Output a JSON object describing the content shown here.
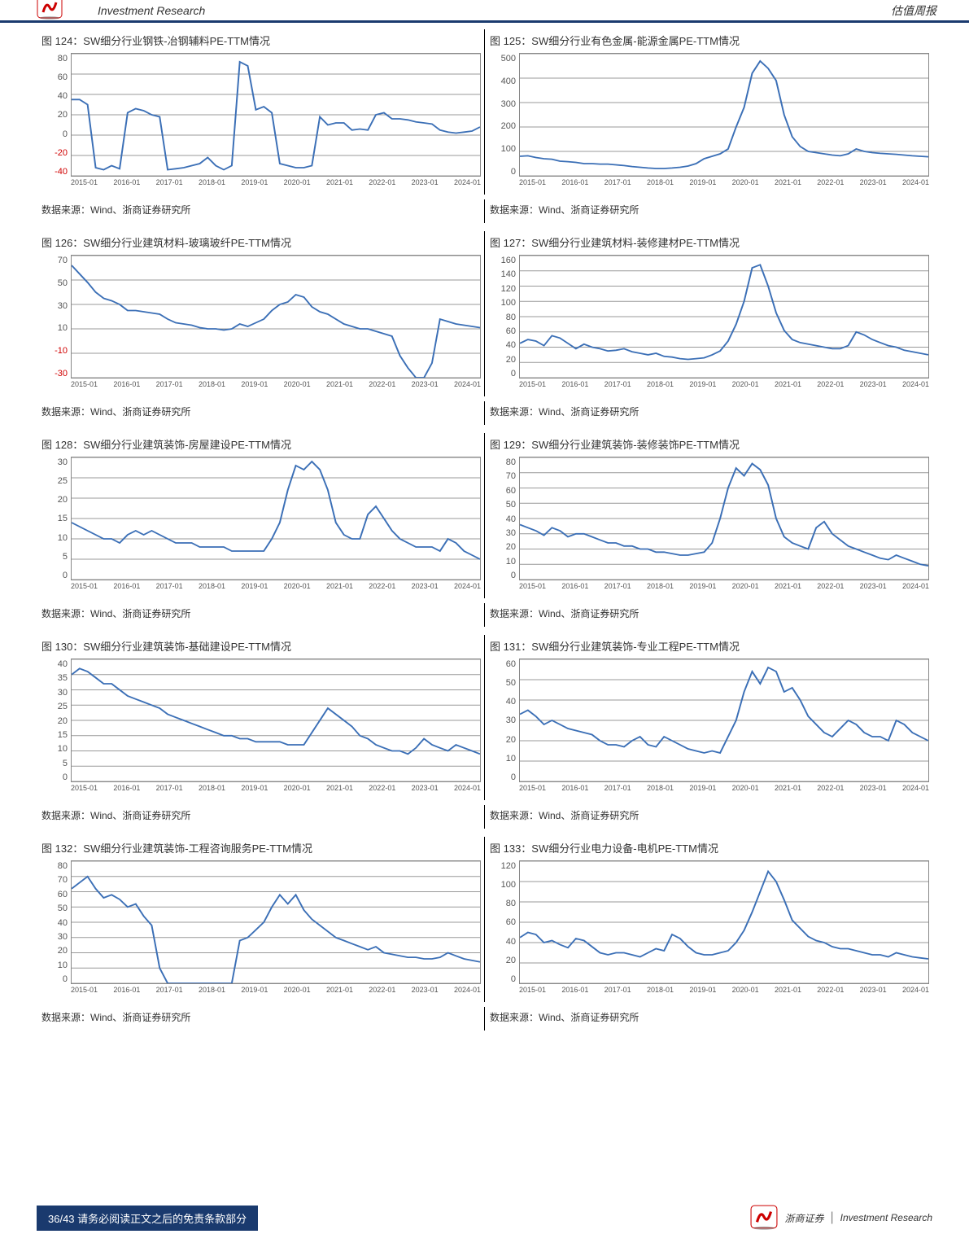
{
  "header": {
    "left": "Investment Research",
    "right": "估值周报"
  },
  "source_text": "数据来源：Wind、浙商证券研究所",
  "footer": {
    "page_label": "36/43   请务必阅读正文之后的免责条款部分",
    "brand_cn": "浙商证券",
    "brand_en": "Investment Research"
  },
  "style": {
    "line_color": "#3b6fb6",
    "grid_color": "#999999",
    "border_color": "#888888",
    "neg_color": "#d00000",
    "accent": "#1a3a6e"
  },
  "x_labels": [
    "2015-01",
    "2016-01",
    "2017-01",
    "2018-01",
    "2019-01",
    "2020-01",
    "2021-01",
    "2022-01",
    "2023-01",
    "2024-01"
  ],
  "charts": [
    {
      "pair": [
        {
          "title": "图 124：SW细分行业钢铁-冶钢辅料PE-TTM情况",
          "ymin": -40,
          "ymax": 80,
          "yticks": [
            80,
            60,
            40,
            20,
            0,
            -20,
            -40
          ],
          "data": [
            35,
            35,
            30,
            -32,
            -34,
            -30,
            -33,
            22,
            26,
            24,
            20,
            18,
            -34,
            -33,
            -32,
            -30,
            -28,
            -22,
            -30,
            -34,
            -30,
            72,
            68,
            25,
            28,
            22,
            -28,
            -30,
            -32,
            -32,
            -30,
            18,
            10,
            12,
            12,
            5,
            6,
            5,
            20,
            22,
            16,
            16,
            15,
            13,
            12,
            11,
            5,
            3,
            2,
            3,
            4,
            8
          ]
        },
        {
          "title": "图 125：SW细分行业有色金属-能源金属PE-TTM情况",
          "ymin": 0,
          "ymax": 500,
          "yticks": [
            500,
            400,
            300,
            200,
            100,
            0
          ],
          "data": [
            80,
            82,
            75,
            70,
            68,
            60,
            58,
            55,
            50,
            50,
            48,
            48,
            45,
            42,
            38,
            35,
            32,
            30,
            30,
            32,
            35,
            40,
            50,
            70,
            80,
            90,
            110,
            200,
            280,
            420,
            470,
            440,
            390,
            250,
            160,
            120,
            100,
            95,
            90,
            85,
            82,
            90,
            110,
            100,
            95,
            92,
            90,
            88,
            85,
            82,
            80,
            78
          ]
        }
      ]
    },
    {
      "pair": [
        {
          "title": "图 126：SW细分行业建筑材料-玻璃玻纤PE-TTM情况",
          "ymin": -30,
          "ymax": 70,
          "yticks": [
            70,
            50,
            30,
            10,
            -10,
            -30
          ],
          "data": [
            62,
            55,
            48,
            40,
            35,
            33,
            30,
            25,
            25,
            24,
            23,
            22,
            18,
            15,
            14,
            13,
            11,
            10,
            10,
            9,
            10,
            14,
            12,
            15,
            18,
            25,
            30,
            32,
            38,
            36,
            28,
            24,
            22,
            18,
            14,
            12,
            10,
            10,
            8,
            6,
            4,
            -12,
            -22,
            -30,
            -30,
            -18,
            18,
            16,
            14,
            13,
            12,
            11
          ]
        },
        {
          "title": "图 127：SW细分行业建筑材料-装修建材PE-TTM情况",
          "ymin": 0,
          "ymax": 160,
          "yticks": [
            160,
            140,
            120,
            100,
            80,
            60,
            40,
            20,
            0
          ],
          "data": [
            45,
            50,
            48,
            42,
            55,
            52,
            45,
            38,
            44,
            40,
            38,
            35,
            36,
            38,
            34,
            32,
            30,
            32,
            28,
            27,
            25,
            24,
            25,
            26,
            30,
            35,
            48,
            70,
            100,
            144,
            148,
            120,
            85,
            62,
            50,
            46,
            44,
            42,
            40,
            38,
            38,
            42,
            60,
            56,
            50,
            46,
            42,
            40,
            36,
            34,
            32,
            30
          ]
        }
      ]
    },
    {
      "pair": [
        {
          "title": "图 128：SW细分行业建筑装饰-房屋建设PE-TTM情况",
          "ymin": 0,
          "ymax": 30,
          "yticks": [
            30,
            25,
            20,
            15,
            10,
            5,
            0
          ],
          "data": [
            14,
            13,
            12,
            11,
            10,
            10,
            9,
            11,
            12,
            11,
            12,
            11,
            10,
            9,
            9,
            9,
            8,
            8,
            8,
            8,
            7,
            7,
            7,
            7,
            7,
            10,
            14,
            22,
            28,
            27,
            29,
            27,
            22,
            14,
            11,
            10,
            10,
            16,
            18,
            15,
            12,
            10,
            9,
            8,
            8,
            8,
            7,
            10,
            9,
            7,
            6,
            5
          ]
        },
        {
          "title": "图 129：SW细分行业建筑装饰-装修装饰PE-TTM情况",
          "ymin": 0,
          "ymax": 80,
          "yticks": [
            80,
            70,
            60,
            50,
            40,
            30,
            20,
            10,
            0
          ],
          "data": [
            36,
            34,
            32,
            29,
            34,
            32,
            28,
            30,
            30,
            28,
            26,
            24,
            24,
            22,
            22,
            20,
            20,
            18,
            18,
            17,
            16,
            16,
            17,
            18,
            24,
            40,
            60,
            73,
            68,
            76,
            72,
            62,
            40,
            28,
            24,
            22,
            20,
            34,
            38,
            30,
            26,
            22,
            20,
            18,
            16,
            14,
            13,
            16,
            14,
            12,
            10,
            9
          ]
        }
      ]
    },
    {
      "pair": [
        {
          "title": "图 130：SW细分行业建筑装饰-基础建设PE-TTM情况",
          "ymin": 0,
          "ymax": 40,
          "yticks": [
            40,
            35,
            30,
            25,
            20,
            15,
            10,
            5,
            0
          ],
          "data": [
            35,
            37,
            36,
            34,
            32,
            32,
            30,
            28,
            27,
            26,
            25,
            24,
            22,
            21,
            20,
            19,
            18,
            17,
            16,
            15,
            15,
            14,
            14,
            13,
            13,
            13,
            13,
            12,
            12,
            12,
            16,
            20,
            24,
            22,
            20,
            18,
            15,
            14,
            12,
            11,
            10,
            10,
            9,
            11,
            14,
            12,
            11,
            10,
            12,
            11,
            10,
            9
          ]
        },
        {
          "title": "图 131：SW细分行业建筑装饰-专业工程PE-TTM情况",
          "ymin": 0,
          "ymax": 60,
          "yticks": [
            60,
            50,
            40,
            30,
            20,
            10,
            0
          ],
          "data": [
            33,
            35,
            32,
            28,
            30,
            28,
            26,
            25,
            24,
            23,
            20,
            18,
            18,
            17,
            20,
            22,
            18,
            17,
            22,
            20,
            18,
            16,
            15,
            14,
            15,
            14,
            22,
            30,
            44,
            54,
            48,
            56,
            54,
            44,
            46,
            40,
            32,
            28,
            24,
            22,
            26,
            30,
            28,
            24,
            22,
            22,
            20,
            30,
            28,
            24,
            22,
            20
          ]
        }
      ]
    },
    {
      "pair": [
        {
          "title": "图 132：SW细分行业建筑装饰-工程咨询服务PE-TTM情况",
          "ymin": 0,
          "ymax": 80,
          "yticks": [
            80,
            70,
            60,
            50,
            40,
            30,
            20,
            10,
            0
          ],
          "data": [
            62,
            66,
            70,
            62,
            56,
            58,
            55,
            50,
            52,
            44,
            38,
            10,
            0,
            0,
            0,
            0,
            0,
            0,
            0,
            0,
            0,
            28,
            30,
            35,
            40,
            50,
            58,
            52,
            58,
            48,
            42,
            38,
            34,
            30,
            28,
            26,
            24,
            22,
            24,
            20,
            19,
            18,
            17,
            17,
            16,
            16,
            17,
            20,
            18,
            16,
            15,
            14
          ]
        },
        {
          "title": "图 133：SW细分行业电力设备-电机PE-TTM情况",
          "ymin": 0,
          "ymax": 120,
          "yticks": [
            120,
            100,
            80,
            60,
            40,
            20,
            0
          ],
          "data": [
            45,
            50,
            48,
            40,
            42,
            38,
            35,
            44,
            42,
            36,
            30,
            28,
            30,
            30,
            28,
            26,
            30,
            34,
            32,
            48,
            44,
            36,
            30,
            28,
            28,
            30,
            32,
            40,
            52,
            70,
            90,
            110,
            100,
            82,
            62,
            54,
            46,
            42,
            40,
            36,
            34,
            34,
            32,
            30,
            28,
            28,
            26,
            30,
            28,
            26,
            25,
            24
          ]
        }
      ]
    }
  ]
}
